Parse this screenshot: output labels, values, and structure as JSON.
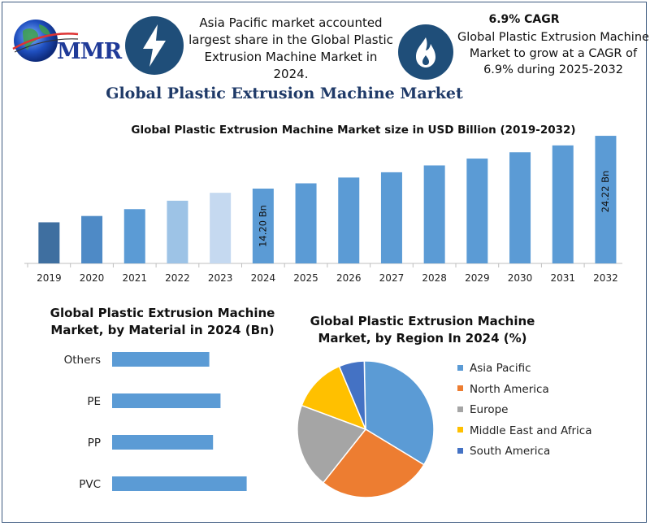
{
  "logo": {
    "text": "MMR"
  },
  "facts": [
    {
      "icon": "lightning-icon",
      "title": "",
      "text": "Asia Pacific market accounted largest share in the Global Plastic Extrusion Machine Market in 2024."
    },
    {
      "icon": "flame-icon",
      "title": "6.9% CAGR",
      "text": "Global Plastic Extrusion Machine Market to grow at a CAGR of 6.9% during 2025-2032"
    }
  ],
  "main_title": "Global Plastic Extrusion Machine Market",
  "colors": {
    "bar_main": "#5b9bd5",
    "bar_dark": "#2e75b6",
    "navy": "#1f4e79",
    "title": "#1f3a68"
  },
  "chart_data": [
    {
      "type": "bar",
      "title": "Global Plastic Extrusion Machine Market size in USD Billion (2019-2032)",
      "categories": [
        "2019",
        "2020",
        "2021",
        "2022",
        "2023",
        "2024",
        "2025",
        "2026",
        "2027",
        "2028",
        "2029",
        "2030",
        "2031",
        "2032"
      ],
      "values": [
        7.8,
        9.0,
        10.3,
        11.9,
        13.4,
        14.2,
        15.2,
        16.3,
        17.3,
        18.6,
        19.9,
        21.1,
        22.4,
        24.22
      ],
      "bar_colors": [
        "#3f6fa0",
        "#4e8ac6",
        "#5b9bd5",
        "#9dc3e6",
        "#c5d9f0",
        "#5b9bd5",
        "#5b9bd5",
        "#5b9bd5",
        "#5b9bd5",
        "#5b9bd5",
        "#5b9bd5",
        "#5b9bd5",
        "#5b9bd5",
        "#5b9bd5"
      ],
      "data_labels": [
        {
          "category": "2024",
          "text": "14.20 Bn"
        },
        {
          "category": "2032",
          "text": "24.22 Bn"
        }
      ],
      "ylim": [
        0,
        25
      ],
      "grid": false
    },
    {
      "type": "bar",
      "orientation": "horizontal",
      "title": "Global Plastic Extrusion Machine Market, by Material in 2024 (Bn)",
      "categories": [
        "Others",
        "PE",
        "PP",
        "PVC"
      ],
      "values": [
        2.6,
        2.9,
        2.7,
        3.6
      ],
      "xlim": [
        0,
        4
      ],
      "color": "#5b9bd5"
    },
    {
      "type": "pie",
      "title": "Global Plastic Extrusion Machine Market, by Region In 2024 (%)",
      "labels": [
        "Asia Pacific",
        "North America",
        "Europe",
        "Middle East and Africa",
        "South America"
      ],
      "values": [
        34,
        27,
        20,
        13,
        6
      ],
      "colors": [
        "#5b9bd5",
        "#ed7d31",
        "#a5a5a5",
        "#ffc000",
        "#4472c4"
      ],
      "legend": "right"
    }
  ]
}
